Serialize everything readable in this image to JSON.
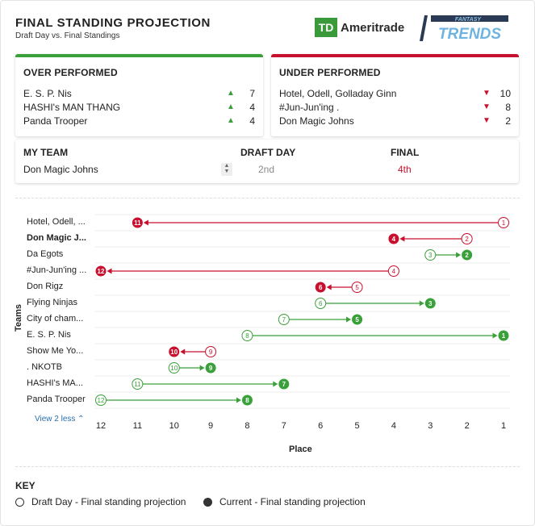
{
  "header": {
    "title": "FINAL STANDING PROJECTION",
    "subtitle": "Draft Day vs. Final Standings",
    "td_logo_mark": "TD",
    "td_logo_word": "Ameritrade",
    "ft_logo_top": "FANTASY",
    "ft_logo_bottom": "TRENDS"
  },
  "over": {
    "title": "OVER PERFORMED",
    "rows": [
      {
        "name": "E. S. P. Nis",
        "value": "7"
      },
      {
        "name": "HASHI's MAN THANG",
        "value": "4"
      },
      {
        "name": "Panda Trooper",
        "value": "4"
      }
    ]
  },
  "under": {
    "title": "UNDER PERFORMED",
    "rows": [
      {
        "name": "Hotel, Odell, Golladay Ginn",
        "value": "10"
      },
      {
        "name": "#Jun-Jun'ing .",
        "value": "8"
      },
      {
        "name": "Don Magic Johns",
        "value": "2"
      }
    ]
  },
  "my_team": {
    "label": "MY TEAM",
    "value": "Don Magic Johns",
    "draft_label": "DRAFT DAY",
    "draft_value": "2nd",
    "final_label": "FINAL",
    "final_value": "4th"
  },
  "chart_data": {
    "type": "dumbbell",
    "ylabel": "Teams",
    "xlabel": "Place",
    "x_ticks": [
      12,
      11,
      10,
      9,
      8,
      7,
      6,
      5,
      4,
      3,
      2,
      1
    ],
    "teams": [
      {
        "label": "Hotel, Odell, ...",
        "draft": 1,
        "final": 11,
        "bold": false
      },
      {
        "label": "Don Magic J...",
        "draft": 2,
        "final": 4,
        "bold": true
      },
      {
        "label": "Da Egots",
        "draft": 3,
        "final": 2,
        "bold": false
      },
      {
        "label": "#Jun-Jun'ing ...",
        "draft": 4,
        "final": 12,
        "bold": false
      },
      {
        "label": "Don Rigz",
        "draft": 5,
        "final": 6,
        "bold": false
      },
      {
        "label": "Flying Ninjas",
        "draft": 6,
        "final": 3,
        "bold": false
      },
      {
        "label": "City of cham...",
        "draft": 7,
        "final": 5,
        "bold": false
      },
      {
        "label": "E. S. P. Nis",
        "draft": 8,
        "final": 1,
        "bold": false
      },
      {
        "label": "Show Me Yo...",
        "draft": 9,
        "final": 10,
        "bold": false
      },
      {
        "label": ". NKOTB",
        "draft": 10,
        "final": 9,
        "bold": false
      },
      {
        "label": "HASHI's MA...",
        "draft": 11,
        "final": 7,
        "bold": false
      },
      {
        "label": "Panda Trooper",
        "draft": 12,
        "final": 8,
        "bold": false
      }
    ],
    "colors": {
      "up": "#3aa03a",
      "down": "#c8102e"
    }
  },
  "view_less": "View 2 less ⌃",
  "key": {
    "title": "KEY",
    "draft": "Draft Day - Final standing projection",
    "current": "Current - Final standing projection"
  }
}
